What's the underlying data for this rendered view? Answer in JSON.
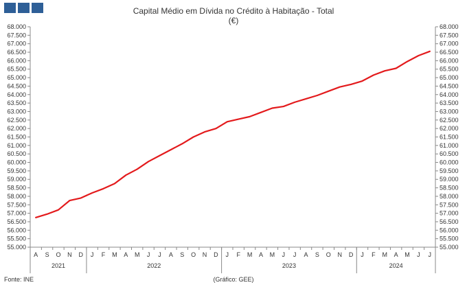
{
  "logo": {
    "squares": 3,
    "color": "#2e5f97"
  },
  "chart_data": {
    "type": "line",
    "title": "Capital Médio em Dívida no Crédito à Habitação - Total",
    "subtitle": "(€)",
    "ylim": [
      55000,
      68000
    ],
    "ystep": 500,
    "y_tick_labels": [
      "55.000",
      "55.500",
      "56.000",
      "56.500",
      "57.000",
      "57.500",
      "58.000",
      "58.500",
      "59.000",
      "59.500",
      "60.000",
      "60.500",
      "61.000",
      "61.500",
      "62.000",
      "62.500",
      "63.000",
      "63.500",
      "64.000",
      "64.500",
      "65.000",
      "65.500",
      "66.000",
      "66.500",
      "67.000",
      "67.500",
      "68.000"
    ],
    "categories": [
      "A",
      "S",
      "O",
      "N",
      "D",
      "J",
      "F",
      "M",
      "A",
      "M",
      "J",
      "J",
      "A",
      "S",
      "O",
      "N",
      "D",
      "J",
      "F",
      "M",
      "A",
      "M",
      "J",
      "J",
      "A",
      "S",
      "O",
      "N",
      "D",
      "J",
      "F",
      "M",
      "A",
      "M",
      "J",
      "J"
    ],
    "years": [
      {
        "label": "2021",
        "start": 0,
        "end": 4
      },
      {
        "label": "2022",
        "start": 5,
        "end": 16
      },
      {
        "label": "2023",
        "start": 17,
        "end": 28
      },
      {
        "label": "2024",
        "start": 29,
        "end": 35
      }
    ],
    "series": [
      {
        "color": "#e31a1c",
        "values": [
          56750,
          56950,
          57200,
          57750,
          57900,
          58200,
          58450,
          58750,
          59250,
          59600,
          60050,
          60400,
          60750,
          61100,
          61500,
          61800,
          62000,
          62400,
          62550,
          62700,
          62950,
          63200,
          63300,
          63550,
          63750,
          63950,
          64200,
          64450,
          64600,
          64800,
          65150,
          65400,
          65550,
          65950,
          66300,
          66550
        ]
      }
    ],
    "grid": false,
    "legend": "none"
  },
  "footer": {
    "source": "Fonte:  INE",
    "credit": "(Gráfico:  GEE)"
  }
}
